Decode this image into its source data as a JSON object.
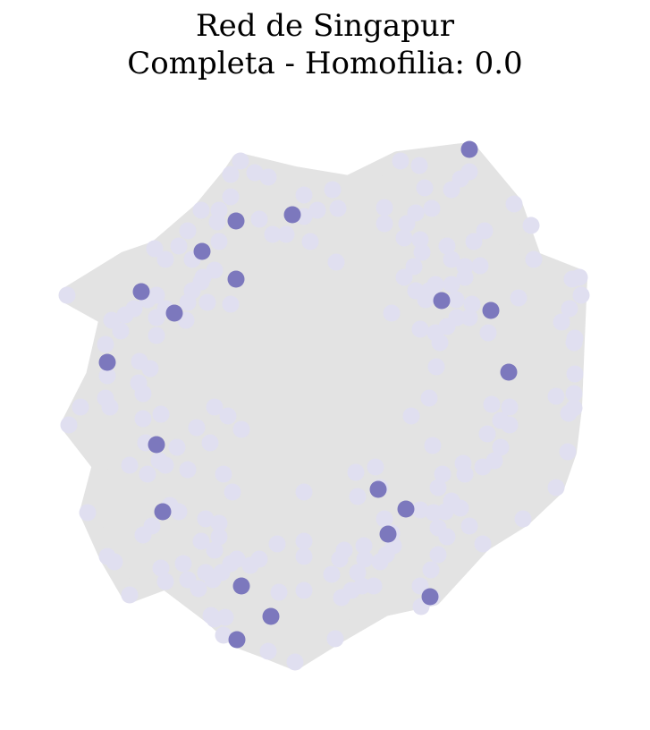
{
  "title": {
    "line1": "Red de Singapur",
    "line2": "Completa - Homofilia: 0.0"
  },
  "graph": {
    "edge_color": "#e3e3e3",
    "node_colors": {
      "majority": "#e0dff0",
      "minority": "#7c78bd"
    },
    "node_groups": {
      "majority": 243,
      "minority": 20
    }
  }
}
